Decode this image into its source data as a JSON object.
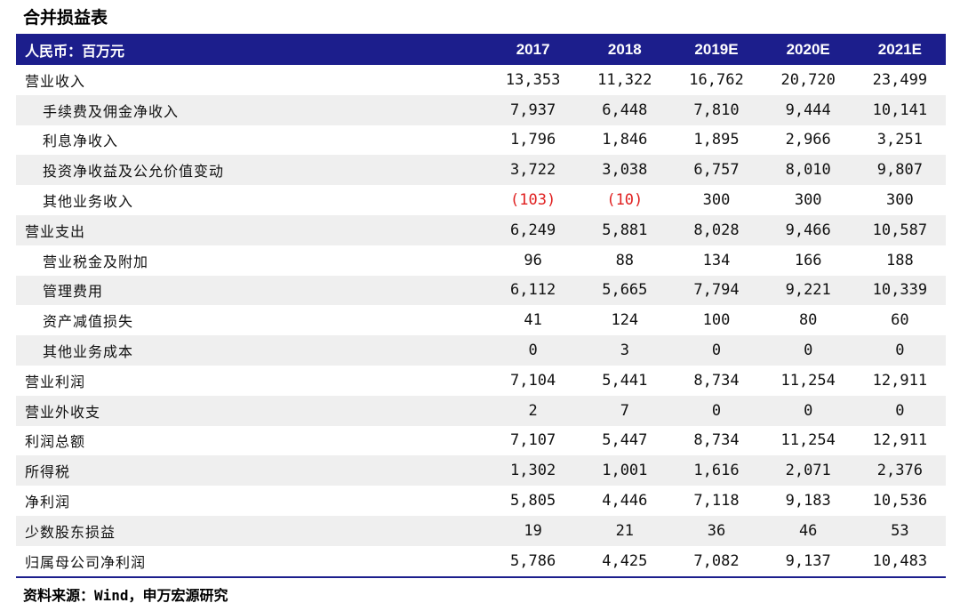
{
  "title": "合并损益表",
  "header": {
    "unit_label": "人民币：百万元",
    "years": [
      "2017",
      "2018",
      "2019E",
      "2020E",
      "2021E"
    ]
  },
  "rows": [
    {
      "label": "营业收入",
      "indent": false,
      "values": [
        "13,353",
        "11,322",
        "16,762",
        "20,720",
        "23,499"
      ]
    },
    {
      "label": "手续费及佣金净收入",
      "indent": true,
      "values": [
        "7,937",
        "6,448",
        "7,810",
        "9,444",
        "10,141"
      ]
    },
    {
      "label": "利息净收入",
      "indent": true,
      "values": [
        "1,796",
        "1,846",
        "1,895",
        "2,966",
        "3,251"
      ]
    },
    {
      "label": "投资净收益及公允价值变动",
      "indent": true,
      "values": [
        "3,722",
        "3,038",
        "6,757",
        "8,010",
        "9,807"
      ]
    },
    {
      "label": "其他业务收入",
      "indent": true,
      "values": [
        "(103)",
        "(10)",
        "300",
        "300",
        "300"
      ]
    },
    {
      "label": "营业支出",
      "indent": false,
      "values": [
        "6,249",
        "5,881",
        "8,028",
        "9,466",
        "10,587"
      ]
    },
    {
      "label": "营业税金及附加",
      "indent": true,
      "values": [
        "96",
        "88",
        "134",
        "166",
        "188"
      ]
    },
    {
      "label": "管理费用",
      "indent": true,
      "values": [
        "6,112",
        "5,665",
        "7,794",
        "9,221",
        "10,339"
      ]
    },
    {
      "label": "资产减值损失",
      "indent": true,
      "values": [
        "41",
        "124",
        "100",
        "80",
        "60"
      ]
    },
    {
      "label": "其他业务成本",
      "indent": true,
      "values": [
        "0",
        "3",
        "0",
        "0",
        "0"
      ]
    },
    {
      "label": "营业利润",
      "indent": false,
      "values": [
        "7,104",
        "5,441",
        "8,734",
        "11,254",
        "12,911"
      ]
    },
    {
      "label": "营业外收支",
      "indent": false,
      "values": [
        "2",
        "7",
        "0",
        "0",
        "0"
      ]
    },
    {
      "label": "利润总额",
      "indent": false,
      "values": [
        "7,107",
        "5,447",
        "8,734",
        "11,254",
        "12,911"
      ]
    },
    {
      "label": "所得税",
      "indent": false,
      "values": [
        "1,302",
        "1,001",
        "1,616",
        "2,071",
        "2,376"
      ]
    },
    {
      "label": "净利润",
      "indent": false,
      "values": [
        "5,805",
        "4,446",
        "7,118",
        "9,183",
        "10,536"
      ]
    },
    {
      "label": "少数股东损益",
      "indent": false,
      "values": [
        "19",
        "21",
        "36",
        "46",
        "53"
      ]
    },
    {
      "label": "归属母公司净利润",
      "indent": false,
      "values": [
        "5,786",
        "4,425",
        "7,082",
        "9,137",
        "10,483"
      ]
    }
  ],
  "source": "资料来源：Wind，申万宏源研究",
  "colors": {
    "header_bg": "#1c1e8c",
    "negative": "#e02020",
    "stripe": "#efefef"
  }
}
